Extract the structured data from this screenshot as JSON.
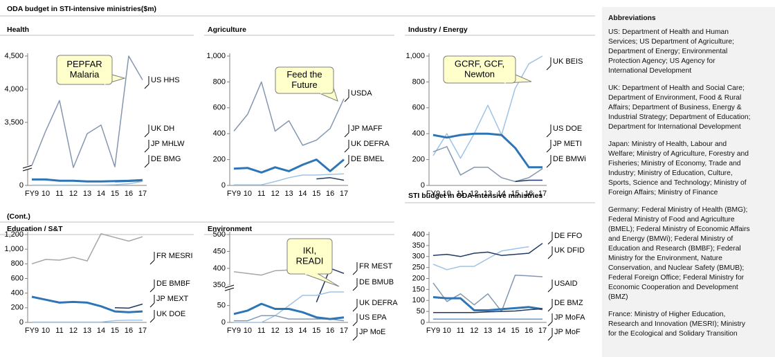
{
  "title": "ODA budget in STI-intensive ministries($m)",
  "cont": "(Cont.)",
  "chart_data": [
    {
      "type": "line",
      "title": "Health",
      "categories": [
        "FY9",
        "10",
        "11",
        "12",
        "13",
        "14",
        "15",
        "16",
        "17"
      ],
      "ylim": [
        0,
        4500
      ],
      "ybreak": [
        250,
        2800
      ],
      "yticks": [
        0,
        {
          "value": 3500,
          "label": "3,500"
        },
        {
          "value": 4000,
          "label": "4,000"
        },
        {
          "value": 4500,
          "label": "4,500"
        }
      ],
      "series": [
        {
          "name": "US HHS",
          "color": "#8497b0",
          "line_width": 1.5,
          "values": [
            2850,
            3370,
            3830,
            2820,
            3330,
            3460,
            2830,
            4500,
            4140
          ]
        },
        {
          "name": "UK DH",
          "color": "#1f3864",
          "line_width": 1.5,
          "values": [
            null,
            null,
            null,
            null,
            null,
            null,
            55,
            60,
            70
          ]
        },
        {
          "name": "JP MHLW",
          "color": "#2e75b6",
          "line_width": 3,
          "values": [
            90,
            90,
            70,
            70,
            60,
            60,
            65,
            70,
            80
          ]
        },
        {
          "name": "DE BMG",
          "color": "#9dc3e6",
          "line_width": 1.5,
          "values": [
            5,
            5,
            5,
            5,
            5,
            5,
            10,
            25,
            60
          ]
        }
      ],
      "annotation": [
        "PEPFAR",
        "Malaria"
      ]
    },
    {
      "type": "line",
      "title": "Agriculture",
      "categories": [
        "FY9",
        "10",
        "11",
        "12",
        "13",
        "14",
        "15",
        "16",
        "17"
      ],
      "ylim": [
        0,
        1000
      ],
      "yticks": [
        0,
        200,
        400,
        600,
        800,
        {
          "value": 1000,
          "label": "1,000"
        }
      ],
      "series": [
        {
          "name": "USDA",
          "color": "#8497b0",
          "line_width": 1.5,
          "values": [
            420,
            550,
            800,
            420,
            500,
            310,
            350,
            440,
            670
          ]
        },
        {
          "name": "JP MAFF",
          "color": "#2e75b6",
          "line_width": 3,
          "values": [
            130,
            135,
            100,
            140,
            110,
            160,
            200,
            110,
            200
          ]
        },
        {
          "name": "UK DEFRA",
          "color": "#1f3864",
          "line_width": 1.5,
          "values": [
            null,
            null,
            null,
            null,
            null,
            null,
            50,
            60,
            40
          ]
        },
        {
          "name": "DE BMEL",
          "color": "#9dc3e6",
          "line_width": 1.5,
          "values": [
            5,
            5,
            5,
            30,
            60,
            80,
            80,
            85,
            90
          ]
        }
      ],
      "annotation": [
        "Feed the",
        "Future"
      ]
    },
    {
      "type": "line",
      "title": "Industry / Energy",
      "categories": [
        "FY9",
        "10",
        "11",
        "12",
        "13",
        "14",
        "15",
        "16",
        "17"
      ],
      "ylim": [
        0,
        1000
      ],
      "yticks": [
        0,
        200,
        400,
        600,
        800,
        {
          "value": 1000,
          "label": "1,000"
        }
      ],
      "series": [
        {
          "name": "UK BEIS",
          "color": "#9dc3e6",
          "line_width": 1.5,
          "values": [
            230,
            400,
            210,
            400,
            620,
            390,
            750,
            940,
            1000
          ]
        },
        {
          "name": "US DOE",
          "color": "#8497b0",
          "line_width": 1.5,
          "values": [
            260,
            300,
            80,
            140,
            140,
            60,
            30,
            60,
            130
          ]
        },
        {
          "name": "JP METI",
          "color": "#2e75b6",
          "line_width": 3,
          "values": [
            390,
            370,
            390,
            400,
            400,
            390,
            290,
            140,
            140
          ]
        },
        {
          "name": "DE BMWi",
          "color": "#1f3864",
          "line_width": 1.5,
          "values": [
            null,
            null,
            null,
            null,
            null,
            null,
            30,
            40,
            40
          ]
        }
      ],
      "annotation": [
        "GCRF, GCF,",
        "Newton"
      ]
    },
    {
      "type": "line",
      "title": "Education / S&T",
      "categories": [
        "FY9",
        "10",
        "11",
        "12",
        "13",
        "14",
        "15",
        "16",
        "17"
      ],
      "ylim": [
        0,
        1200
      ],
      "yticks": [
        0,
        200,
        400,
        600,
        800,
        {
          "value": 1000,
          "label": "1,000"
        },
        {
          "value": 1200,
          "label": "1,200"
        }
      ],
      "series": [
        {
          "name": "FR MESRI",
          "color": "#a6a6a6",
          "line_width": 1.5,
          "values": [
            800,
            860,
            850,
            890,
            840,
            1210,
            1160,
            1110,
            1170
          ]
        },
        {
          "name": "DE BMBF",
          "color": "#1f3864",
          "line_width": 1.5,
          "values": [
            null,
            null,
            null,
            null,
            null,
            null,
            200,
            195,
            250
          ]
        },
        {
          "name": "JP MEXT",
          "color": "#2e75b6",
          "line_width": 3,
          "values": [
            350,
            310,
            270,
            280,
            270,
            220,
            150,
            140,
            150
          ]
        },
        {
          "name": "UK DOE",
          "color": "#9dc3e6",
          "line_width": 1.5,
          "values": [
            5,
            5,
            5,
            5,
            5,
            5,
            25,
            30,
            30
          ]
        }
      ]
    },
    {
      "type": "line",
      "title": "Environment",
      "categories": [
        "FY9",
        "10",
        "11",
        "12",
        "13",
        "14",
        "15",
        "16",
        "17"
      ],
      "ylim": [
        0,
        500
      ],
      "ybreak": [
        100,
        340
      ],
      "yticks": [
        0,
        50,
        350,
        400,
        450,
        500
      ],
      "series": [
        {
          "name": "FR MEST",
          "color": "#a6a6a6",
          "line_width": 1.5,
          "values": [
            390,
            385,
            380,
            393,
            395,
            null,
            null,
            null,
            null
          ]
        },
        {
          "name": "DE BMUB",
          "color": "#1f3864",
          "line_width": 1.5,
          "values": [
            null,
            null,
            null,
            null,
            null,
            null,
            60,
            400,
            385
          ]
        },
        {
          "name": "UK DEFRA",
          "color": "#9dc3e6",
          "line_width": 1.5,
          "values": [
            0,
            0,
            0,
            20,
            50,
            80,
            80,
            90,
            90
          ]
        },
        {
          "name": "US EPA",
          "color": "#8497b0",
          "line_width": 1.5,
          "values": [
            5,
            5,
            20,
            20,
            10,
            10,
            10,
            10,
            5
          ]
        },
        {
          "name": "JP MoE",
          "color": "#2e75b6",
          "line_width": 3,
          "values": [
            25,
            35,
            55,
            40,
            40,
            30,
            15,
            10,
            15
          ]
        }
      ],
      "annotation": [
        "IKI,",
        "READI"
      ]
    },
    {
      "type": "line",
      "title": "STI budget in ODA-intensive ministries",
      "categories": [
        "FY9",
        "10",
        "11",
        "12",
        "13",
        "14",
        "15",
        "16",
        "17"
      ],
      "ylim": [
        0,
        400
      ],
      "yticks": [
        0,
        50,
        100,
        150,
        200,
        250,
        300,
        350,
        400
      ],
      "series": [
        {
          "name": "DE FFO",
          "color": "#9dc3e6",
          "line_width": 1.5,
          "values": [
            265,
            240,
            255,
            255,
            290,
            325,
            335,
            345,
            null
          ]
        },
        {
          "name": "UK DFID",
          "color": "#1f3864",
          "line_width": 1.5,
          "values": [
            305,
            310,
            300,
            315,
            320,
            305,
            310,
            315,
            360
          ]
        },
        {
          "name": "USAID",
          "color": "#8497b0",
          "line_width": 1.5,
          "values": [
            180,
            95,
            130,
            80,
            130,
            50,
            215,
            212,
            208
          ]
        },
        {
          "name": "DE BMZ",
          "color": "#5b9bd5",
          "line_width": 1.5,
          "values": [
            15,
            15,
            15,
            15,
            15,
            15,
            15,
            15,
            15
          ]
        },
        {
          "name": "JP MoFA",
          "color": "#2e75b6",
          "line_width": 3,
          "values": [
            115,
            110,
            110,
            55,
            55,
            60,
            65,
            70,
            60
          ]
        },
        {
          "name": "JP MoF",
          "color": "#1f3864",
          "line_width": 1.5,
          "values": [
            45,
            45,
            45,
            45,
            48,
            50,
            52,
            58,
            62
          ]
        }
      ]
    }
  ],
  "abbreviations": {
    "title": "Abbreviations",
    "paragraphs": [
      [
        "US: Department of Health and Human",
        "Services; US Department of Agriculture;",
        "Department of Energy; Environmental",
        "Protection Agency; US Agency for",
        "International Development"
      ],
      [
        "UK: Department of Health and Social Care;",
        "Department of Environment, Food & Rural",
        "Affairs; Department of Business, Energy &",
        "Industrial Strategy; Department of Education;",
        "Department for International Development"
      ],
      [
        "Japan: Ministry of Health, Labour and",
        "Welfare; Ministry of Agriculture, Forestry and",
        "Fisheries; Ministry of Economy, Trade and",
        "Industry; Ministry of Education, Culture,",
        "Sports, Science and Technology; Ministry of",
        "Foreign Affairs; Ministry of Finance"
      ],
      [
        "Germany: Federal Ministry of Health (BMG);",
        "Federal Ministry of Food and Agriculture",
        "(BMEL); Federal Ministry of Economic Affairs",
        "and Energy (BMWi); Federal Ministry of",
        "Education and Research (BMBF); Federal",
        "Ministry for the Environment, Nature",
        "Conservation, and Nuclear Safety (BMUB);",
        "Federal Foreign Office; Federal Ministry for",
        "Economic Cooperation and Development",
        "(BMZ)"
      ],
      [
        "France: Ministry of Higher Education,",
        "Research and Innovation (MESRI); Ministry",
        "for the Ecological and Solidary Transition"
      ]
    ]
  }
}
